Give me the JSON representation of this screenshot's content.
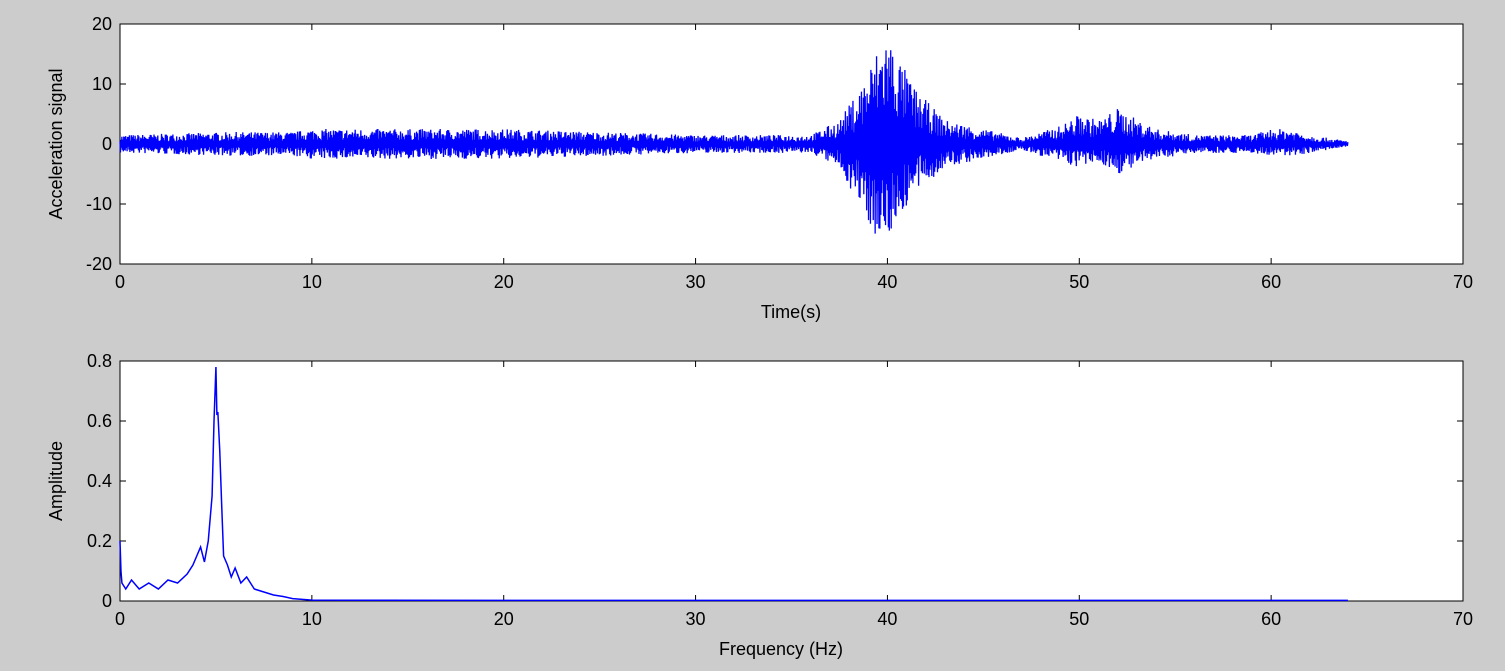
{
  "figure": {
    "background": "#cccccc",
    "axes_background": "#ffffff",
    "line_color": "#0000ff"
  },
  "chart_data": [
    {
      "type": "line",
      "title": "",
      "xlabel": "Time(s)",
      "ylabel": "Acceleration signal",
      "xlim": [
        0,
        70
      ],
      "ylim": [
        -20,
        20
      ],
      "xticks": [
        0,
        10,
        20,
        30,
        40,
        50,
        60,
        70
      ],
      "yticks": [
        -20,
        -10,
        0,
        10,
        20
      ],
      "grid": false,
      "series": [
        {
          "color": "#0000ff",
          "envelope": {
            "x": [
              0,
              6,
              9,
              10,
              15,
              20,
              30,
              36,
              37.5,
              38.5,
              39.5,
              40,
              40.5,
              41.5,
              43,
              45,
              47,
              48,
              49,
              50,
              51,
              52,
              52.5,
              54,
              56,
              59,
              60,
              61,
              62,
              64
            ],
            "max": [
              1.5,
              2,
              2,
              2.5,
              2.5,
              2.5,
              1.5,
              1.5,
              4,
              9,
              16,
              19,
              15,
              9,
              4,
              2.5,
              1,
              2,
              3,
              5,
              4,
              6,
              5,
              2.5,
              1.5,
              1.5,
              2.5,
              2.5,
              1.5,
              0.5
            ],
            "min": [
              -1.5,
              -2,
              -2,
              -2.5,
              -2.5,
              -2.5,
              -1.5,
              -1.5,
              -4,
              -10,
              -16,
              -16,
              -13,
              -8,
              -4,
              -2.5,
              -1,
              -2,
              -3,
              -4,
              -3,
              -5,
              -4.5,
              -2.5,
              -1.5,
              -1.5,
              -2,
              -2,
              -1.5,
              -0.5
            ]
          }
        }
      ]
    },
    {
      "type": "line",
      "title": "",
      "xlabel": "Frequency (Hz)",
      "ylabel": "Amplitude",
      "xlim": [
        0,
        70
      ],
      "ylim": [
        0,
        0.8
      ],
      "xticks": [
        0,
        10,
        20,
        30,
        40,
        50,
        60,
        70
      ],
      "yticks": [
        0,
        0.2,
        0.4,
        0.6,
        0.8
      ],
      "grid": false,
      "series": [
        {
          "color": "#0000ff",
          "x": [
            0,
            0.05,
            0.1,
            0.3,
            0.6,
            1,
            1.5,
            2,
            2.5,
            3,
            3.5,
            3.8,
            4,
            4.2,
            4.4,
            4.6,
            4.8,
            4.9,
            5.0,
            5.05,
            5.1,
            5.2,
            5.3,
            5.4,
            5.6,
            5.8,
            6,
            6.3,
            6.6,
            7,
            7.5,
            8,
            8.5,
            9,
            10,
            20,
            30,
            40,
            50,
            60,
            64
          ],
          "y": [
            0.2,
            0.1,
            0.06,
            0.04,
            0.07,
            0.04,
            0.06,
            0.04,
            0.07,
            0.06,
            0.09,
            0.12,
            0.15,
            0.18,
            0.13,
            0.2,
            0.35,
            0.6,
            0.78,
            0.62,
            0.63,
            0.5,
            0.32,
            0.15,
            0.12,
            0.08,
            0.11,
            0.06,
            0.08,
            0.04,
            0.03,
            0.02,
            0.015,
            0.008,
            0.003,
            0.002,
            0.002,
            0.002,
            0.002,
            0.002,
            0.002
          ]
        }
      ]
    }
  ]
}
